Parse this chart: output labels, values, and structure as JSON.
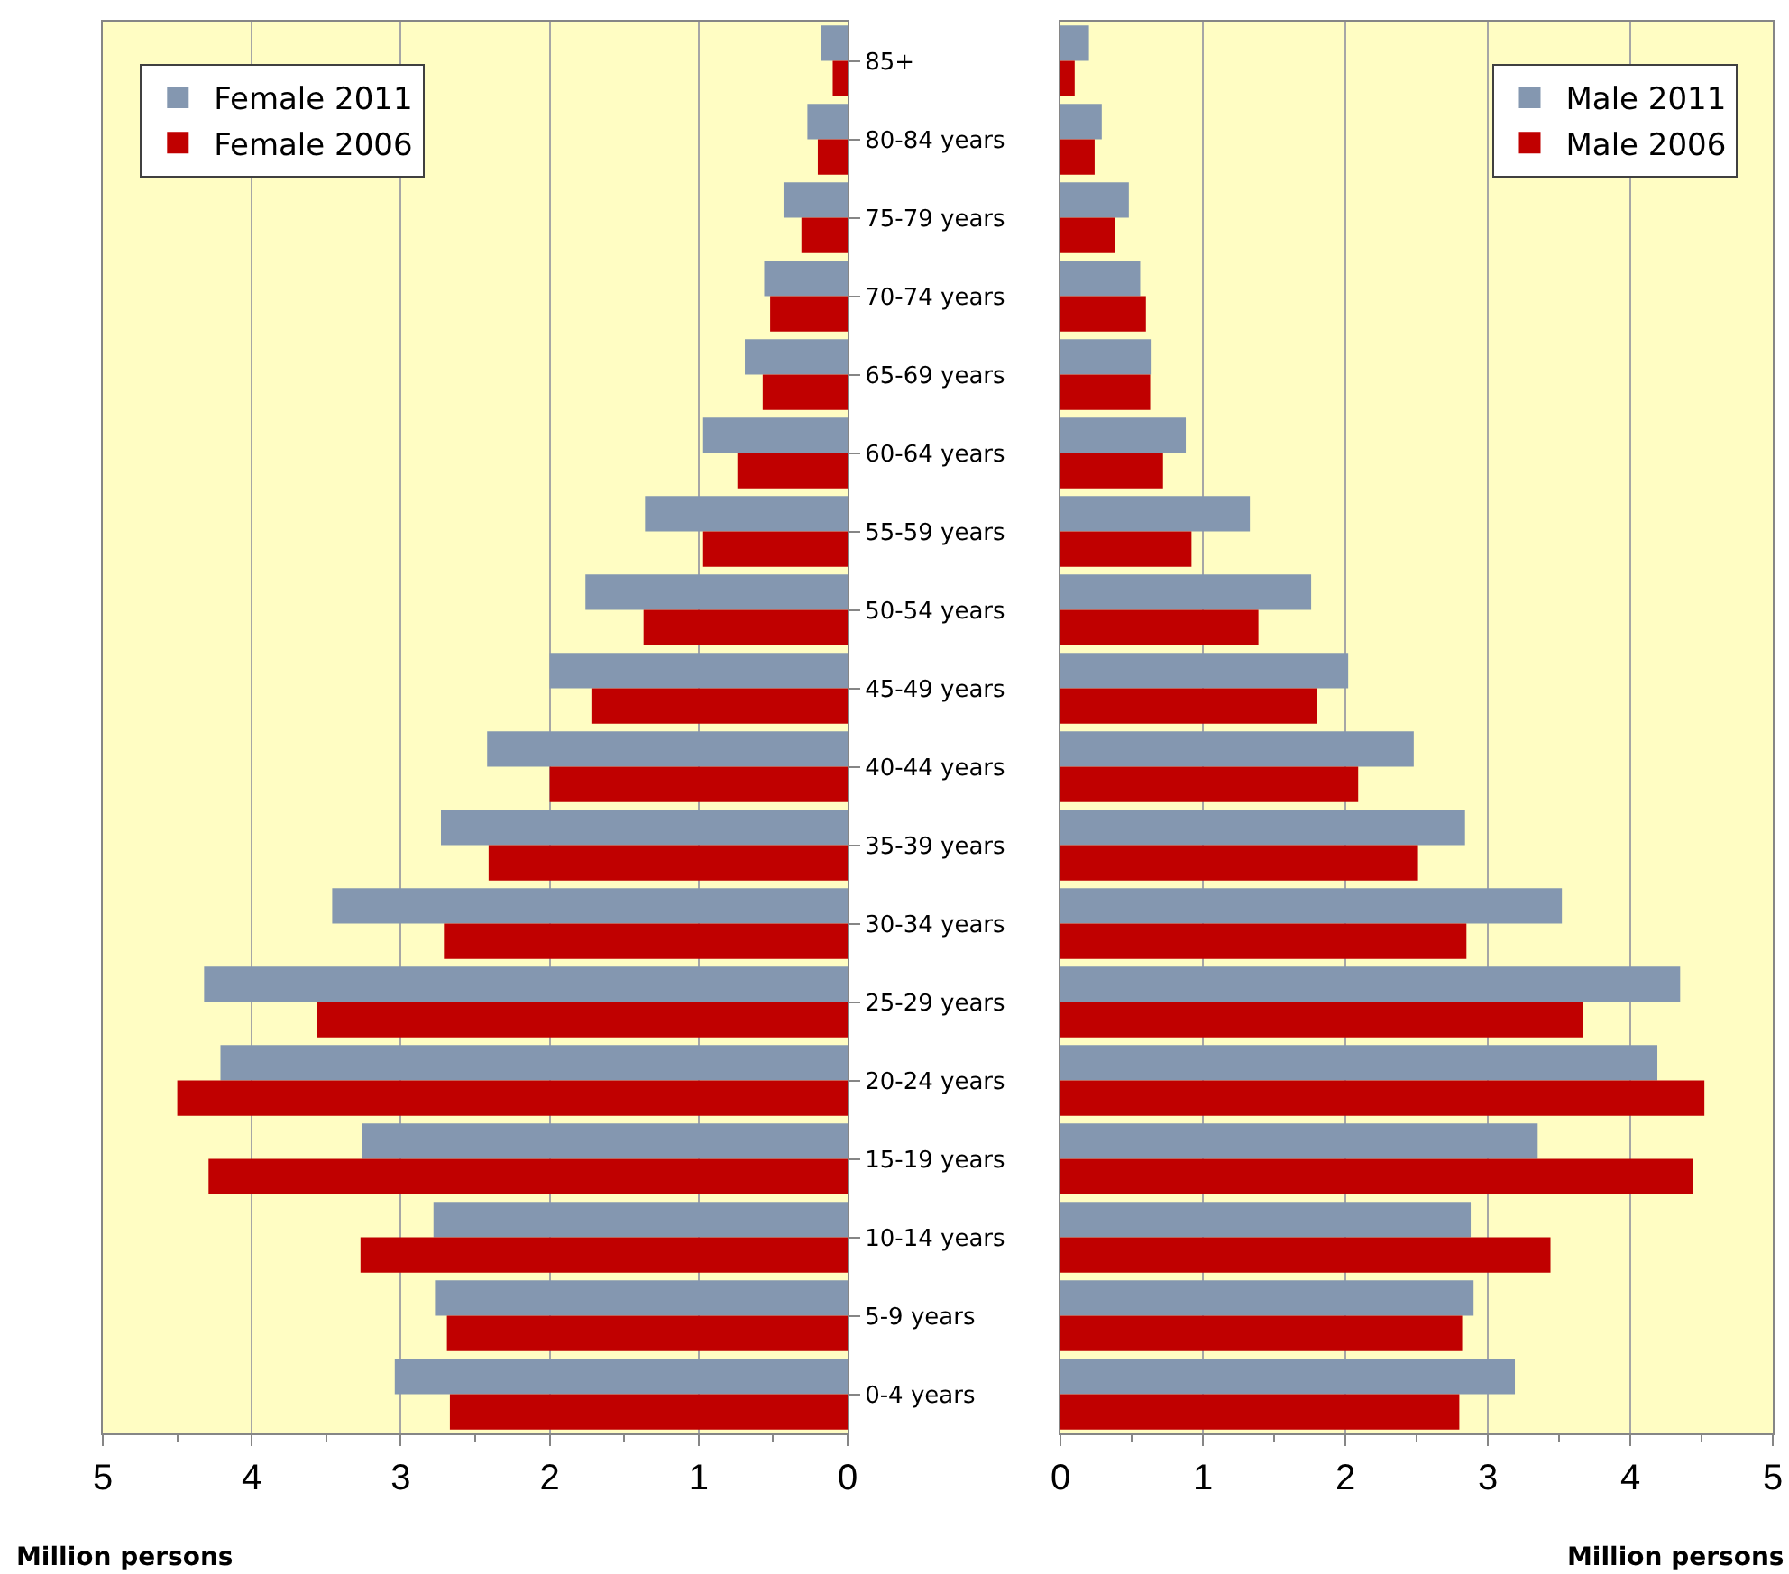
{
  "chart_data": [
    {
      "type": "bar",
      "orientation": "horizontal",
      "categories": [
        "85+",
        "80-84 years",
        "75-79 years",
        "70-74 years",
        "65-69 years",
        "60-64 years",
        "55-59 years",
        "50-54 years",
        "45-49 years",
        "40-44 years",
        "35-39 years",
        "30-34 years",
        "25-29 years",
        "20-24 years",
        "15-19 years",
        "10-14 years",
        "5-9 years",
        "0-4 years"
      ],
      "series": [
        {
          "name": "Female 2011",
          "color": "#8497b0",
          "values": [
            0.18,
            0.27,
            0.43,
            0.56,
            0.69,
            0.97,
            1.36,
            1.76,
            2.0,
            2.42,
            2.73,
            3.46,
            4.32,
            4.21,
            3.26,
            2.78,
            2.77,
            3.04
          ]
        },
        {
          "name": "Female 2006",
          "color": "#c00000",
          "values": [
            0.1,
            0.2,
            0.31,
            0.52,
            0.57,
            0.74,
            0.97,
            1.37,
            1.72,
            2.0,
            2.41,
            2.71,
            3.56,
            4.5,
            4.29,
            3.27,
            2.69,
            2.67
          ]
        }
      ],
      "xlim": [
        5,
        0
      ],
      "xticks": [
        5,
        4,
        3,
        2,
        1,
        0
      ],
      "xlabel": "Million persons",
      "grid": "x",
      "legend": "top left"
    },
    {
      "type": "bar",
      "orientation": "horizontal",
      "categories": [
        null,
        null,
        null,
        null,
        null,
        null,
        null,
        null,
        null,
        null,
        null,
        null,
        null,
        null,
        null,
        null,
        null,
        null
      ],
      "series": [
        {
          "name": "Male 2011",
          "color": "#8497b0",
          "values": [
            0.2,
            0.29,
            0.48,
            0.56,
            0.64,
            0.88,
            1.33,
            1.76,
            2.02,
            2.48,
            2.84,
            3.52,
            4.35,
            4.19,
            3.35,
            2.88,
            2.9,
            3.19
          ]
        },
        {
          "name": "Male 2006",
          "color": "#c00000",
          "values": [
            0.1,
            0.24,
            0.38,
            0.6,
            0.63,
            0.72,
            0.92,
            1.39,
            1.8,
            2.09,
            2.51,
            2.85,
            3.67,
            4.52,
            4.44,
            3.44,
            2.82,
            2.8
          ]
        }
      ],
      "xlim": [
        0,
        5
      ],
      "xticks": [
        0,
        1,
        2,
        3,
        4,
        5
      ],
      "xlabel": "Million persons",
      "grid": "x",
      "legend": "top right",
      "tick_labels": "x"
    }
  ]
}
